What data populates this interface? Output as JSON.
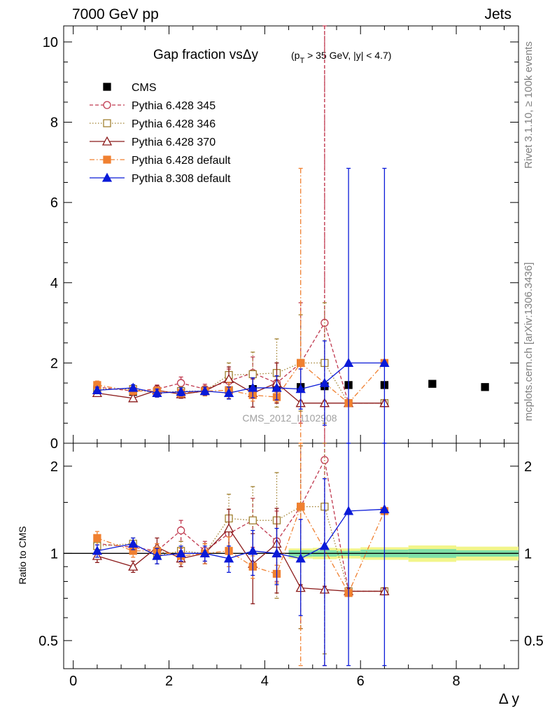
{
  "header": {
    "left": "7000 GeV pp",
    "right": "Jets"
  },
  "side_labels": {
    "rivet": "Rivet 3.1.10, ≥ 100k events",
    "mcplots": "mcplots.cern.ch [arXiv:1306.3436]"
  },
  "analysis_id": "CMS_2012_I1102908",
  "colors": {
    "CMS": "#000000",
    "Pythia 6.428 345": "#c0394f",
    "Pythia 6.428 346": "#a08030",
    "Pythia 6.428 370": "#8b1a1a",
    "Pythia 6.428 default": "#f08030",
    "Pythia 8.308 default": "#0a1ad8",
    "band_inner": "#7fe0a8",
    "band_outer": "#f2f58a"
  },
  "chart_data": [
    {
      "type": "scatter",
      "title": "Gap fraction vsΔy",
      "title_suffix": "(p_T > 35 GeV, |y| < 4.7)",
      "xlabel": "Δ y",
      "ylabel": "",
      "xlim": [
        -0.2,
        9.3
      ],
      "ylim": [
        0,
        10.4
      ],
      "y_ticks": [
        0,
        2,
        4,
        6,
        8,
        10
      ],
      "legend_position": "top-left",
      "legend": [
        "CMS",
        "Pythia 6.428 345",
        "Pythia 6.428 346",
        "Pythia 6.428 370",
        "Pythia 6.428 default",
        "Pythia 8.308 default"
      ],
      "vertical_line_x": 5.25,
      "series": [
        {
          "name": "CMS",
          "marker": "filled-square",
          "line": "none",
          "x": [
            0.5,
            1.25,
            1.75,
            2.25,
            2.75,
            3.25,
            3.75,
            4.25,
            4.75,
            5.25,
            5.75,
            6.5,
            7.5,
            8.6
          ],
          "y": [
            1.32,
            1.28,
            1.28,
            1.28,
            1.3,
            1.32,
            1.35,
            1.38,
            1.4,
            1.42,
            1.45,
            1.45,
            1.48,
            1.4
          ]
        },
        {
          "name": "Pythia 6.428 345",
          "marker": "open-circle",
          "line": "dashed",
          "x": [
            0.5,
            1.25,
            1.75,
            2.25,
            2.75,
            3.25,
            3.75,
            4.25,
            4.75,
            5.25,
            5.75,
            6.5
          ],
          "y": [
            1.4,
            1.3,
            1.35,
            1.5,
            1.35,
            1.55,
            1.75,
            1.5,
            2.0,
            3.0,
            1.0,
            1.0
          ],
          "err": [
            0.08,
            0.08,
            0.1,
            0.15,
            0.12,
            0.3,
            0.4,
            0.5,
            1.5,
            7.5,
            0.05,
            0.05
          ]
        },
        {
          "name": "Pythia 6.428 346",
          "marker": "open-square",
          "line": "dotted",
          "x": [
            0.5,
            1.25,
            1.75,
            2.25,
            2.75,
            3.25,
            3.75,
            4.25,
            4.75,
            5.25,
            5.75,
            6.5
          ],
          "y": [
            1.35,
            1.35,
            1.25,
            1.3,
            1.3,
            1.7,
            1.72,
            1.75,
            2.0,
            2.0,
            1.0,
            1.0
          ],
          "err": [
            0.08,
            0.08,
            0.1,
            0.1,
            0.12,
            0.3,
            0.55,
            0.85,
            1.2,
            1.5,
            0.05,
            0.05
          ]
        },
        {
          "name": "Pythia 6.428 370",
          "marker": "open-triangle",
          "line": "solid",
          "x": [
            0.5,
            1.25,
            1.75,
            2.25,
            2.75,
            3.25,
            3.75,
            4.25,
            4.75,
            5.25,
            5.75,
            6.5
          ],
          "y": [
            1.25,
            1.12,
            1.32,
            1.22,
            1.3,
            1.6,
            1.25,
            1.5,
            1.0,
            1.0,
            1.0,
            1.0
          ],
          "err": [
            0.08,
            0.08,
            0.12,
            0.1,
            0.12,
            0.3,
            0.35,
            0.5,
            0.05,
            0.05,
            0.05,
            0.05
          ]
        },
        {
          "name": "Pythia 6.428 default",
          "marker": "filled-square",
          "line": "dashdot",
          "x": [
            0.5,
            1.25,
            1.75,
            2.25,
            2.75,
            3.25,
            3.75,
            4.25,
            4.75,
            5.75,
            6.5
          ],
          "y": [
            1.45,
            1.3,
            1.3,
            1.25,
            1.3,
            1.32,
            1.2,
            1.15,
            2.0,
            1.0,
            2.0
          ],
          "err": [
            0.1,
            0.08,
            0.1,
            0.1,
            0.12,
            0.2,
            0.15,
            0.12,
            4.85,
            0.05,
            0.05
          ]
        },
        {
          "name": "Pythia 8.308 default",
          "marker": "filled-triangle",
          "line": "solid",
          "x": [
            0.5,
            1.25,
            1.75,
            2.25,
            2.75,
            3.25,
            3.75,
            4.25,
            4.75,
            5.25,
            5.75,
            6.5
          ],
          "y": [
            1.32,
            1.38,
            1.25,
            1.28,
            1.3,
            1.25,
            1.38,
            1.38,
            1.35,
            1.5,
            2.0,
            2.0
          ],
          "err": [
            0.08,
            0.08,
            0.1,
            0.1,
            0.1,
            0.15,
            0.25,
            0.3,
            0.5,
            1.05,
            4.85,
            4.85
          ]
        }
      ]
    },
    {
      "type": "scatter",
      "title": "",
      "xlabel": "Δ y",
      "ylabel": "Ratio to CMS",
      "xlim": [
        -0.2,
        9.3
      ],
      "ylim": [
        0.4,
        2.4
      ],
      "y_scale": "log",
      "x_ticks": [
        0,
        2,
        4,
        6,
        8
      ],
      "y_ticks": [
        0.5,
        1,
        2
      ],
      "reference_line_y": 1.0,
      "band": {
        "x_edges": [
          4.5,
          5.0,
          5.5,
          6.0,
          7.0,
          8.0,
          9.3
        ],
        "inner": [
          0.025,
          0.025,
          0.02,
          0.03,
          0.035,
          0.025
        ],
        "outer": [
          0.04,
          0.045,
          0.04,
          0.05,
          0.065,
          0.055
        ]
      },
      "series": [
        {
          "name": "Pythia 6.428 345",
          "x": [
            0.5,
            1.25,
            1.75,
            2.25,
            2.75,
            3.25,
            3.75,
            4.25,
            4.75,
            5.25,
            5.75,
            6.5
          ],
          "y": [
            1.08,
            1.05,
            1.02,
            1.2,
            1.02,
            1.17,
            1.3,
            1.1,
            1.45,
            2.1,
            0.74,
            0.74
          ],
          "err": [
            0.06,
            0.05,
            0.06,
            0.1,
            0.08,
            0.18,
            0.25,
            0.3,
            0.9,
            2.0,
            0.02,
            0.02
          ]
        },
        {
          "name": "Pythia 6.428 346",
          "x": [
            0.5,
            1.25,
            1.75,
            2.25,
            2.75,
            3.25,
            3.75,
            4.25,
            4.75,
            5.25,
            5.75,
            6.5
          ],
          "y": [
            1.06,
            1.08,
            0.98,
            1.02,
            1.0,
            1.32,
            1.3,
            1.3,
            1.45,
            1.45,
            0.74,
            0.74
          ],
          "err": [
            0.06,
            0.05,
            0.06,
            0.08,
            0.08,
            0.28,
            0.4,
            0.6,
            0.9,
            1.0,
            0.02,
            0.02
          ]
        },
        {
          "name": "Pythia 6.428 370",
          "x": [
            0.5,
            1.25,
            1.75,
            2.25,
            2.75,
            3.25,
            3.75,
            4.25,
            4.75,
            5.25,
            5.75,
            6.5
          ],
          "y": [
            0.98,
            0.9,
            1.05,
            0.96,
            1.0,
            1.22,
            0.92,
            1.08,
            0.76,
            0.75,
            0.74,
            0.74
          ],
          "err": [
            0.05,
            0.04,
            0.08,
            0.06,
            0.08,
            0.2,
            0.25,
            0.35,
            0.02,
            0.02,
            0.02,
            0.02
          ]
        },
        {
          "name": "Pythia 6.428 default",
          "x": [
            0.5,
            1.25,
            1.75,
            2.25,
            2.75,
            3.25,
            3.75,
            4.25,
            4.75,
            5.75,
            6.5
          ],
          "y": [
            1.13,
            1.02,
            1.02,
            0.98,
            1.0,
            1.02,
            0.9,
            0.85,
            1.45,
            0.73,
            1.4
          ],
          "err": [
            0.06,
            0.05,
            0.06,
            0.06,
            0.08,
            0.12,
            0.08,
            0.06,
            3.0,
            0.02,
            0.02
          ]
        },
        {
          "name": "Pythia 8.308 default",
          "x": [
            0.5,
            1.25,
            1.75,
            2.25,
            2.75,
            3.25,
            3.75,
            4.25,
            4.75,
            5.25,
            5.75,
            6.5
          ],
          "y": [
            1.02,
            1.08,
            0.98,
            1.0,
            1.0,
            0.96,
            1.02,
            1.0,
            0.96,
            1.06,
            1.4,
            1.42
          ],
          "err": [
            0.05,
            0.05,
            0.06,
            0.06,
            0.06,
            0.1,
            0.18,
            0.22,
            0.35,
            0.75,
            3.0,
            3.0
          ]
        }
      ]
    }
  ]
}
